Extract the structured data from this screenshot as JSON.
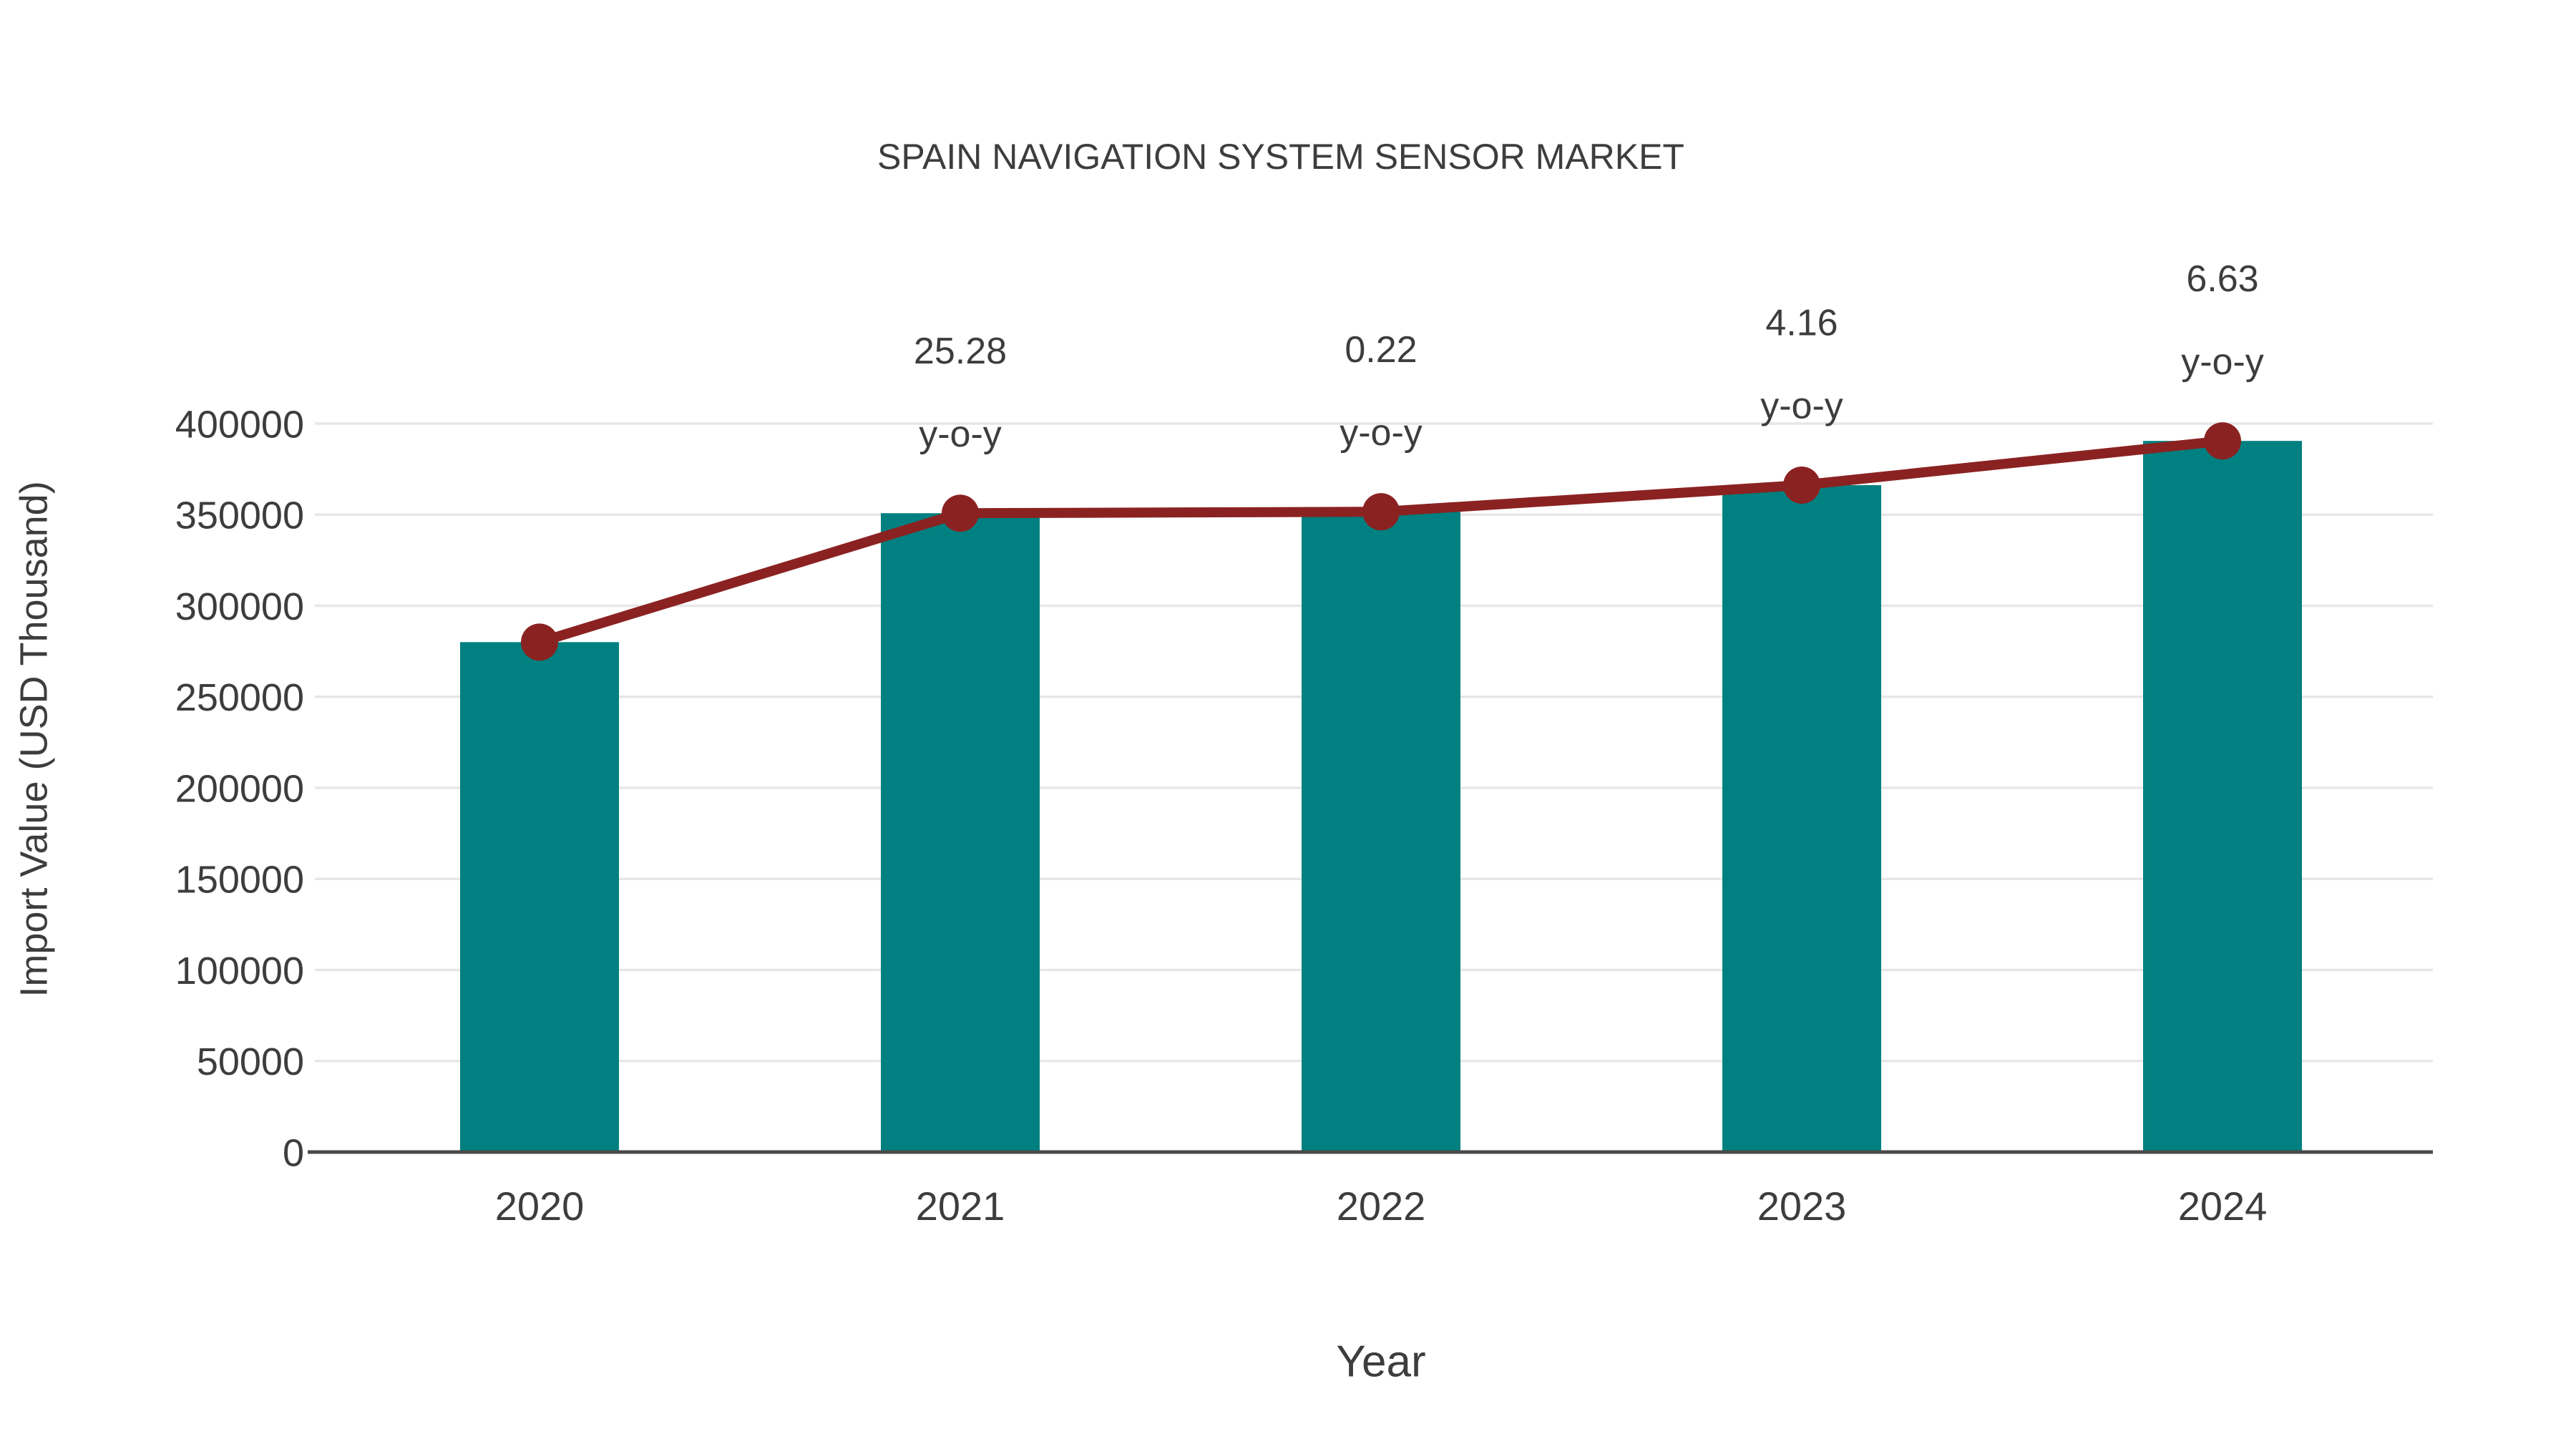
{
  "page": {
    "background": "#FFFFFF"
  },
  "chart_data": {
    "type": "bar",
    "title": "SPAIN NAVIGATION SYSTEM SENSOR MARKET",
    "xlabel": "Year",
    "ylabel": "Import Value (USD Thousand)",
    "categories": [
      "2020",
      "2021",
      "2022",
      "2023",
      "2024"
    ],
    "series": [
      {
        "name": "Import Value (USD Thousand)",
        "type": "bar",
        "color": "#008080",
        "values": [
          280000,
          350800,
          351600,
          366200,
          390500
        ]
      },
      {
        "name": "Year-over-year trend",
        "type": "line",
        "color": "#8B2222",
        "marker_color": "#8B2222",
        "values": [
          280000,
          350800,
          351600,
          366200,
          390500
        ]
      }
    ],
    "annotations": [
      {
        "category": "2021",
        "line1": "25.28",
        "line2": "y-o-y"
      },
      {
        "category": "2022",
        "line1": "0.22",
        "line2": "y-o-y"
      },
      {
        "category": "2023",
        "line1": "4.16",
        "line2": "y-o-y"
      },
      {
        "category": "2024",
        "line1": "6.63",
        "line2": "y-o-y"
      }
    ],
    "ylim": [
      0,
      400000
    ],
    "yticks": [
      0,
      50000,
      100000,
      150000,
      200000,
      250000,
      300000,
      350000,
      400000
    ],
    "grid": true,
    "legend_position": "none",
    "text_color": "#3D3D3D",
    "gridline_color": "#E7E7E7",
    "axis_line_color": "#4A4A4A"
  }
}
